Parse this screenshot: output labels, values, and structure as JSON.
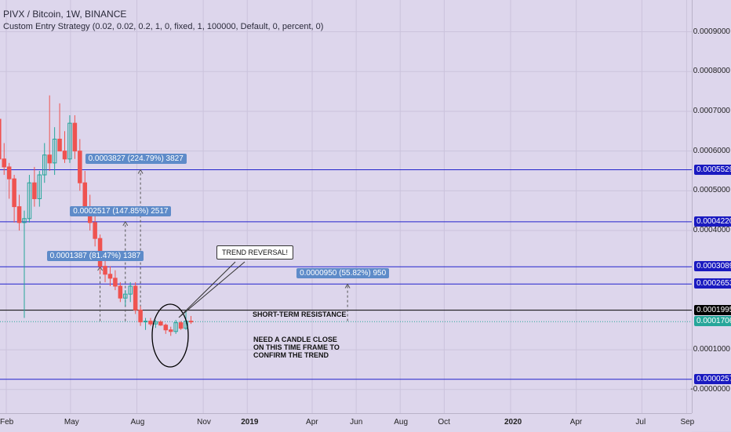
{
  "header": {
    "symbol_line": "PIVX / Bitcoin, 1W, BINANCE",
    "indicator_line": "Custom Entry Strategy (0.02, 0.02, 0.2, 1, 0, fixed, 1, 100000, Default, 0, percent, 0)"
  },
  "colors": {
    "bull": "#26a69a",
    "bear": "#ef5350",
    "hline": "#2222cc",
    "resistance": "#000000",
    "price": "#26a69a",
    "measure_bg": "#5e8bc9"
  },
  "chart_data": {
    "type": "candlestick",
    "title": "",
    "ylim": [
      -3e-05,
      0.00098
    ],
    "y_ticks": [
      "0.0009000",
      "0.0008000",
      "0.0007000",
      "0.0006000",
      "0.0005000",
      "0.0004000",
      "0.0001000",
      "-0.0000000"
    ],
    "y_tick_values": [
      0.0009,
      0.0008,
      0.0007,
      0.0006,
      0.0005,
      0.0004,
      0.0001,
      0.0
    ],
    "x_ticks": [
      "Feb",
      "May",
      "Aug",
      "Nov",
      "2019",
      "Apr",
      "Jun",
      "Aug",
      "Oct",
      "2020",
      "Apr",
      "Jul",
      "Sep"
    ],
    "x_tick_dates": [
      "2018-02-01",
      "2018-05-01",
      "2018-08-01",
      "2018-11-01",
      "2019-01-01",
      "2019-04-01",
      "2019-06-01",
      "2019-08-01",
      "2019-10-01",
      "2020-01-01",
      "2020-04-01",
      "2020-07-01",
      "2020-09-01"
    ],
    "candles": [
      {
        "date": "2018-01-08",
        "o": 0.00085,
        "h": 0.00086,
        "l": 0.0007,
        "c": 0.00072
      },
      {
        "date": "2018-01-15",
        "o": 0.00072,
        "h": 0.00078,
        "l": 0.00066,
        "c": 0.00068
      },
      {
        "date": "2018-01-22",
        "o": 0.00068,
        "h": 0.00071,
        "l": 0.00056,
        "c": 0.00058
      },
      {
        "date": "2018-01-29",
        "o": 0.00058,
        "h": 0.00062,
        "l": 0.00054,
        "c": 0.00056
      },
      {
        "date": "2018-02-05",
        "o": 0.00056,
        "h": 0.00057,
        "l": 0.00048,
        "c": 0.00053
      },
      {
        "date": "2018-02-12",
        "o": 0.00053,
        "h": 0.00054,
        "l": 0.00042,
        "c": 0.00046
      },
      {
        "date": "2018-02-19",
        "o": 0.00046,
        "h": 0.00049,
        "l": 0.0004,
        "c": 0.00042
      },
      {
        "date": "2018-02-26",
        "o": 0.00042,
        "h": 0.00045,
        "l": 0.00018,
        "c": 0.00043
      },
      {
        "date": "2018-03-05",
        "o": 0.00043,
        "h": 0.00054,
        "l": 0.00042,
        "c": 0.00052
      },
      {
        "date": "2018-03-12",
        "o": 0.00052,
        "h": 0.00056,
        "l": 0.00046,
        "c": 0.00048
      },
      {
        "date": "2018-03-19",
        "o": 0.00048,
        "h": 0.00055,
        "l": 0.00046,
        "c": 0.00054
      },
      {
        "date": "2018-03-26",
        "o": 0.00054,
        "h": 0.00062,
        "l": 0.00052,
        "c": 0.00059
      },
      {
        "date": "2018-04-02",
        "o": 0.00059,
        "h": 0.00074,
        "l": 0.00055,
        "c": 0.00057
      },
      {
        "date": "2018-04-09",
        "o": 0.00057,
        "h": 0.00066,
        "l": 0.00054,
        "c": 0.00063
      },
      {
        "date": "2018-04-16",
        "o": 0.00063,
        "h": 0.00072,
        "l": 0.0006,
        "c": 0.0006
      },
      {
        "date": "2018-04-23",
        "o": 0.0006,
        "h": 0.00065,
        "l": 0.00057,
        "c": 0.00058
      },
      {
        "date": "2018-04-30",
        "o": 0.00058,
        "h": 0.00069,
        "l": 0.00057,
        "c": 0.00067
      },
      {
        "date": "2018-05-07",
        "o": 0.00067,
        "h": 0.00069,
        "l": 0.00058,
        "c": 0.0006
      },
      {
        "date": "2018-05-14",
        "o": 0.0006,
        "h": 0.00063,
        "l": 0.0005,
        "c": 0.00052
      },
      {
        "date": "2018-05-21",
        "o": 0.00052,
        "h": 0.00055,
        "l": 0.00044,
        "c": 0.00046
      },
      {
        "date": "2018-05-28",
        "o": 0.00046,
        "h": 0.00049,
        "l": 0.0004,
        "c": 0.00042
      },
      {
        "date": "2018-06-04",
        "o": 0.00042,
        "h": 0.00044,
        "l": 0.00036,
        "c": 0.00038
      },
      {
        "date": "2018-06-11",
        "o": 0.00038,
        "h": 0.00039,
        "l": 0.00029,
        "c": 0.00031
      },
      {
        "date": "2018-06-18",
        "o": 0.00031,
        "h": 0.00033,
        "l": 0.00027,
        "c": 0.00029
      },
      {
        "date": "2018-06-25",
        "o": 0.00029,
        "h": 0.00031,
        "l": 0.00026,
        "c": 0.00028
      },
      {
        "date": "2018-07-02",
        "o": 0.00028,
        "h": 0.0003,
        "l": 0.00025,
        "c": 0.00026
      },
      {
        "date": "2018-07-09",
        "o": 0.00026,
        "h": 0.00027,
        "l": 0.00022,
        "c": 0.00023
      },
      {
        "date": "2018-07-16",
        "o": 0.00023,
        "h": 0.00025,
        "l": 0.00021,
        "c": 0.00024
      },
      {
        "date": "2018-07-23",
        "o": 0.00024,
        "h": 0.00027,
        "l": 0.00022,
        "c": 0.00026
      },
      {
        "date": "2018-07-30",
        "o": 0.00026,
        "h": 0.00027,
        "l": 0.00019,
        "c": 0.0002
      },
      {
        "date": "2018-08-06",
        "o": 0.0002,
        "h": 0.00021,
        "l": 0.00016,
        "c": 0.00017
      },
      {
        "date": "2018-08-13",
        "o": 0.00017,
        "h": 0.00018,
        "l": 0.00015,
        "c": 0.000172
      },
      {
        "date": "2018-08-20",
        "o": 0.000172,
        "h": 0.00018,
        "l": 0.00016,
        "c": 0.000165
      },
      {
        "date": "2018-08-27",
        "o": 0.000165,
        "h": 0.000175,
        "l": 0.000155,
        "c": 0.00017
      },
      {
        "date": "2018-09-03",
        "o": 0.00017,
        "h": 0.000174,
        "l": 0.00016,
        "c": 0.000162
      },
      {
        "date": "2018-09-10",
        "o": 0.000162,
        "h": 0.000166,
        "l": 0.00014,
        "c": 0.00015
      },
      {
        "date": "2018-09-17",
        "o": 0.00015,
        "h": 0.000158,
        "l": 0.000135,
        "c": 0.000146
      },
      {
        "date": "2018-09-24",
        "o": 0.000146,
        "h": 0.000175,
        "l": 0.00014,
        "c": 0.000168
      },
      {
        "date": "2018-10-01",
        "o": 0.000168,
        "h": 0.000172,
        "l": 0.00015,
        "c": 0.000154
      },
      {
        "date": "2018-10-08",
        "o": 0.000154,
        "h": 0.0002,
        "l": 0.00015,
        "c": 0.000172
      },
      {
        "date": "2018-10-15",
        "o": 0.000172,
        "h": 0.000185,
        "l": 0.000165,
        "c": 0.000171
      }
    ],
    "horizontal_lines": [
      {
        "value": 0.0005529,
        "label": "0.0005529",
        "style": "hline"
      },
      {
        "value": 0.000422,
        "label": "0.0004220",
        "style": "hline"
      },
      {
        "value": 0.0003089,
        "label": "0.0003089",
        "style": "hline"
      },
      {
        "value": 0.0002653,
        "label": "0.0002653",
        "style": "hline"
      },
      {
        "value": 0.0001995,
        "label": "0.0001995",
        "style": "resistance"
      },
      {
        "value": 0.0001706,
        "label": "0.0001706",
        "style": "price"
      },
      {
        "value": 2.57e-05,
        "label": "0.0000257",
        "style": "hline"
      }
    ],
    "measurements": [
      {
        "text": "0.0003827 (224.79%) 3827",
        "x_date": "2018-08-06",
        "from": 0.000172,
        "to": 0.000553
      },
      {
        "text": "0.0002517 (147.85%) 2517",
        "x_date": "2018-07-16",
        "from": 0.000172,
        "to": 0.000422
      },
      {
        "text": "0.0001387 (81.47%) 1387",
        "x_date": "2018-06-11",
        "from": 0.000172,
        "to": 0.000309
      },
      {
        "text": "0.0000950 (55.82%) 950",
        "x_date": "2019-05-20",
        "from": 0.000172,
        "to": 0.000265
      }
    ],
    "annotations": {
      "resistance": "SHORT-TERM RESISTANCE",
      "note_lines": [
        "NEED A CANDLE CLOSE",
        "ON THIS TIME FRAME TO",
        "CONFIRM THE TREND"
      ],
      "callout": "TREND REVERSAL!"
    },
    "grid": true
  }
}
